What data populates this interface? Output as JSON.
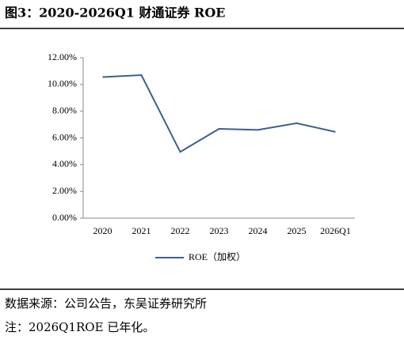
{
  "chart_data": {
    "type": "line",
    "title": "图3：2020-2026Q1 财通证券 ROE",
    "categories": [
      "2020",
      "2021",
      "2022",
      "2023",
      "2024",
      "2025",
      "2026Q1"
    ],
    "series": [
      {
        "name": "ROE（加权）",
        "color": "#3c5f8f",
        "values": [
          10.55,
          10.7,
          4.95,
          6.68,
          6.6,
          7.1,
          6.45
        ]
      }
    ],
    "ylim": [
      0,
      12
    ],
    "yticks": [
      {
        "value": 0,
        "label": "0.00%"
      },
      {
        "value": 2,
        "label": "2.00%"
      },
      {
        "value": 4,
        "label": "4.00%"
      },
      {
        "value": 6,
        "label": "6.00%"
      },
      {
        "value": 8,
        "label": "8.00%"
      },
      {
        "value": 10,
        "label": "10.00%"
      },
      {
        "value": 12,
        "label": "12.00%"
      }
    ],
    "grid": false,
    "legend": "bottom"
  },
  "footer": {
    "source": "数据来源：公司公告，东吴证券研究所",
    "note": "注：2026Q1ROE 已年化。"
  }
}
